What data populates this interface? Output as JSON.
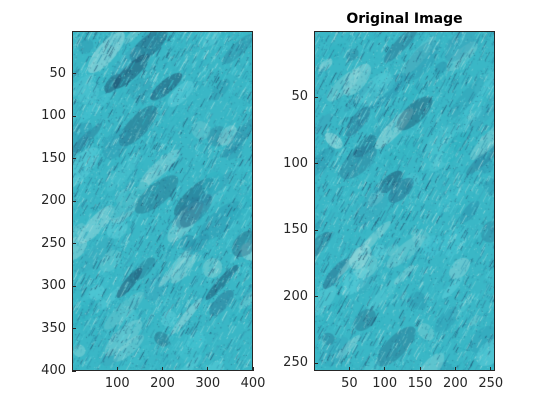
{
  "figure": {
    "left_axes": {
      "title": "",
      "x_ticks": [
        "100",
        "200",
        "300",
        "400"
      ],
      "y_ticks": [
        "50",
        "100",
        "150",
        "200",
        "250",
        "300",
        "350",
        "400"
      ],
      "x_range": [
        0,
        400
      ],
      "y_range": [
        0,
        400
      ],
      "y_reversed": true,
      "image_description_colors": [
        "#2fb3c2",
        "#47c6d4",
        "#2a6f8f",
        "#8fd6d9",
        "#1e4e6e"
      ]
    },
    "right_axes": {
      "title": "Original Image",
      "x_ticks": [
        "50",
        "100",
        "150",
        "200",
        "250"
      ],
      "y_ticks": [
        "50",
        "100",
        "150",
        "200",
        "250"
      ],
      "x_range": [
        0,
        256
      ],
      "y_range": [
        0,
        256
      ],
      "y_reversed": true
    }
  }
}
